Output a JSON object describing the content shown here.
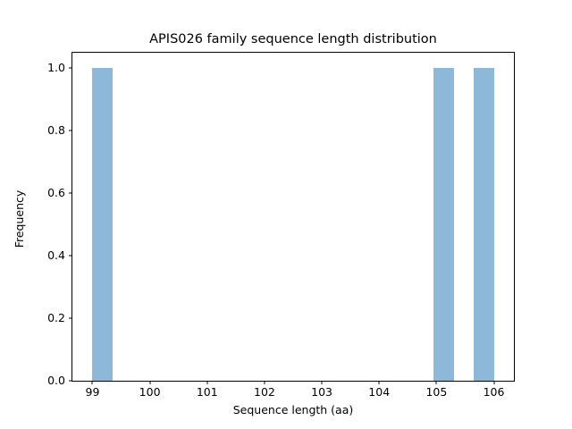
{
  "chart_data": {
    "type": "bar",
    "variant": "histogram",
    "title": "APIS026 family sequence length distribution",
    "xlabel": "Sequence length (aa)",
    "ylabel": "Frequency",
    "xlim": [
      98.65,
      106.35
    ],
    "ylim": [
      0,
      1.05
    ],
    "grid": false,
    "legend": null,
    "bar_color": "#8DB8D7",
    "bin_width": 0.35,
    "x_ticks": [
      {
        "value": 99,
        "label": "99"
      },
      {
        "value": 100,
        "label": "100"
      },
      {
        "value": 101,
        "label": "101"
      },
      {
        "value": 102,
        "label": "102"
      },
      {
        "value": 103,
        "label": "103"
      },
      {
        "value": 104,
        "label": "104"
      },
      {
        "value": 105,
        "label": "105"
      },
      {
        "value": 106,
        "label": "106"
      }
    ],
    "y_ticks": [
      {
        "value": 0.0,
        "label": "0.0"
      },
      {
        "value": 0.2,
        "label": "0.2"
      },
      {
        "value": 0.4,
        "label": "0.4"
      },
      {
        "value": 0.6,
        "label": "0.6"
      },
      {
        "value": 0.8,
        "label": "0.8"
      },
      {
        "value": 1.0,
        "label": "1.0"
      }
    ],
    "bars": [
      {
        "bin_start": 99.0,
        "bin_end": 99.35,
        "frequency": 1
      },
      {
        "bin_start": 104.95,
        "bin_end": 105.3,
        "frequency": 1
      },
      {
        "bin_start": 105.65,
        "bin_end": 106.0,
        "frequency": 1
      }
    ]
  }
}
